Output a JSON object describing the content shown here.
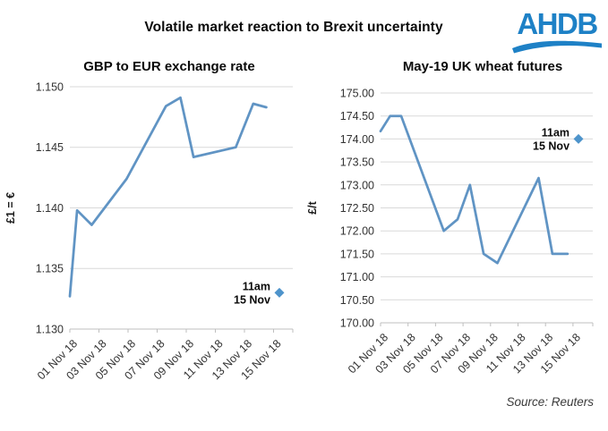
{
  "page": {
    "title": "Volatile market reaction to Brexit uncertainty",
    "logo_text": "AHDB",
    "source": "Source: Reuters",
    "brand_blue": "#1E81C6",
    "background": "#FFFFFF"
  },
  "chart_data": [
    {
      "type": "line",
      "title": "GBP to EUR exchange rate",
      "ylabel": "£1 = €",
      "xlabel": "",
      "grid": "horizontal",
      "legend": "none",
      "line_color": "#6094C4",
      "marker_color": "#4E94CB",
      "gridline_color": "#D9D9D9",
      "axis_color": "#BFBFBF",
      "ylim": [
        1.13,
        1.15
      ],
      "yticks": {
        "values": [
          1.15,
          1.145,
          1.14,
          1.135,
          1.13
        ],
        "labels": [
          "1.150",
          "1.145",
          "1.140",
          "1.135",
          "1.130"
        ]
      },
      "xticks": {
        "days": [
          1,
          3,
          5,
          7,
          9,
          11,
          13,
          15
        ],
        "labels": [
          "01 Nov 18",
          "03 Nov 18",
          "05 Nov 18",
          "07 Nov 18",
          "09 Nov 18",
          "11 Nov 18",
          "13 Nov 18",
          "15 Nov 18"
        ]
      },
      "series": [
        {
          "x_days": [
            1.0,
            1.5,
            2.5,
            4.9,
            7.6,
            8.6,
            9.5,
            12.4,
            13.6,
            14.5
          ],
          "values": [
            1.1327,
            1.1398,
            1.1386,
            1.1424,
            1.1484,
            1.1491,
            1.1442,
            1.145,
            1.1486,
            1.1483
          ]
        }
      ],
      "annotation": {
        "line1": "11am",
        "line2": "15 Nov",
        "day": 15.4,
        "value": 1.133
      }
    },
    {
      "type": "line",
      "title": "May-19 UK wheat futures",
      "ylabel": "£/t",
      "xlabel": "",
      "grid": "horizontal",
      "legend": "none",
      "line_color": "#6094C4",
      "marker_color": "#4E94CB",
      "gridline_color": "#D9D9D9",
      "axis_color": "#BFBFBF",
      "ylim": [
        170.0,
        175.0
      ],
      "yticks": {
        "values": [
          175.0,
          174.5,
          174.0,
          173.5,
          173.0,
          172.5,
          172.0,
          171.5,
          171.0,
          170.5,
          170.0
        ],
        "labels": [
          "175.00",
          "174.50",
          "174.00",
          "173.50",
          "173.00",
          "172.50",
          "172.00",
          "171.50",
          "171.00",
          "170.50",
          "170.00"
        ]
      },
      "xticks": {
        "days": [
          1,
          3,
          5,
          7,
          9,
          11,
          13,
          15
        ],
        "labels": [
          "01 Nov 18",
          "03 Nov 18",
          "05 Nov 18",
          "07 Nov 18",
          "09 Nov 18",
          "11 Nov 18",
          "13 Nov 18",
          "15 Nov 18"
        ]
      },
      "series": [
        {
          "x_days": [
            1.0,
            1.7,
            2.5,
            5.6,
            6.6,
            7.5,
            8.5,
            9.5,
            12.5,
            13.5,
            14.6
          ],
          "values": [
            174.17,
            174.5,
            174.5,
            172.0,
            172.25,
            173.0,
            171.5,
            171.3,
            173.15,
            171.5,
            171.5
          ]
        }
      ],
      "annotation": {
        "line1": "11am",
        "line2": "15 Nov",
        "day": 15.4,
        "value": 174.0
      }
    }
  ]
}
